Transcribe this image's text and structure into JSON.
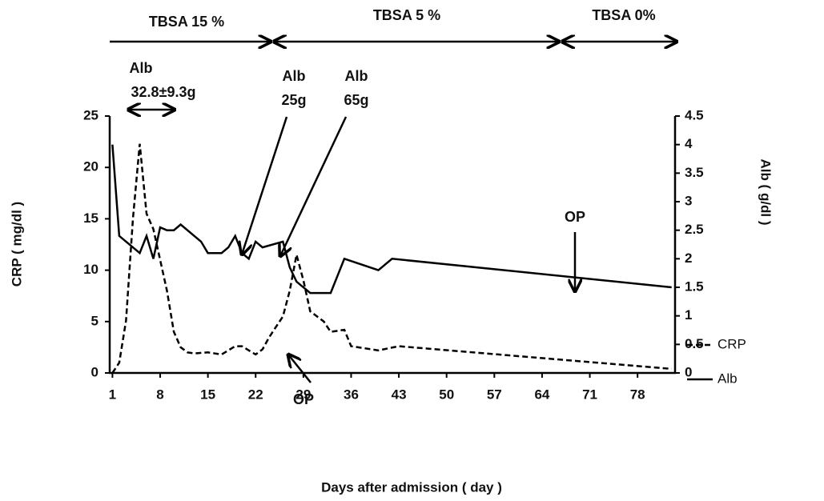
{
  "chart_data": {
    "type": "line",
    "x_label": "Days after admission ( day )",
    "y_label": "CRP ( mg/dl )",
    "y2_label": "Alb ( g/dl )",
    "xlim": [
      0.6,
      83.5
    ],
    "xticks": [
      1,
      8,
      15,
      22,
      29,
      36,
      43,
      50,
      57,
      64,
      71,
      78
    ],
    "ylim": [
      0,
      25
    ],
    "yticks": [
      0,
      5,
      10,
      15,
      20,
      25
    ],
    "y2lim": [
      0,
      4.5
    ],
    "y2ticks": [
      0,
      0.5,
      1,
      1.5,
      2,
      2.5,
      3,
      3.5,
      4,
      4.5
    ],
    "series": [
      {
        "name": "CRP",
        "color": "#000000",
        "dash": true,
        "x": [
          1,
          2,
          3,
          4,
          5,
          6,
          7,
          8,
          9,
          10,
          11,
          12,
          13,
          15,
          17,
          19,
          20,
          21,
          22,
          23,
          24,
          25,
          26,
          27,
          28,
          29,
          30,
          31,
          32,
          33,
          34,
          35,
          36,
          40,
          43,
          83
        ],
        "values": [
          0,
          1,
          5.1,
          15,
          22.3,
          15.5,
          14,
          11,
          8,
          4,
          2.5,
          2,
          1.9,
          2,
          1.8,
          2.6,
          2.6,
          2.2,
          1.8,
          2.3,
          3.5,
          4.5,
          5.5,
          8,
          11.5,
          9,
          6,
          5.5,
          5,
          4,
          4.1,
          4.2,
          2.6,
          2.2,
          2.6,
          0.4
        ]
      },
      {
        "name": "Alb",
        "color": "#000000",
        "dash": false,
        "axis": "y2",
        "x": [
          1,
          2,
          5,
          6,
          7,
          8,
          9,
          10,
          11,
          13,
          14,
          15,
          17,
          18,
          19,
          20,
          21,
          22,
          23,
          26,
          27,
          28,
          30,
          33,
          35,
          40,
          42,
          83
        ],
        "values": [
          4.0,
          2.4,
          2.1,
          2.4,
          2.0,
          2.55,
          2.5,
          2.5,
          2.6,
          2.4,
          2.3,
          2.1,
          2.1,
          2.2,
          2.4,
          2.1,
          2.0,
          2.3,
          2.2,
          2.3,
          1.85,
          1.6,
          1.4,
          1.4,
          2.0,
          1.8,
          2.0,
          1.5
        ]
      }
    ],
    "annotations": [
      "TBSA 15 %",
      "TBSA 5 %",
      "TBSA 0%",
      "Alb",
      "32.8±9.3g",
      "Alb",
      "25g",
      "Alb",
      "65g",
      "OP",
      "OP"
    ]
  }
}
